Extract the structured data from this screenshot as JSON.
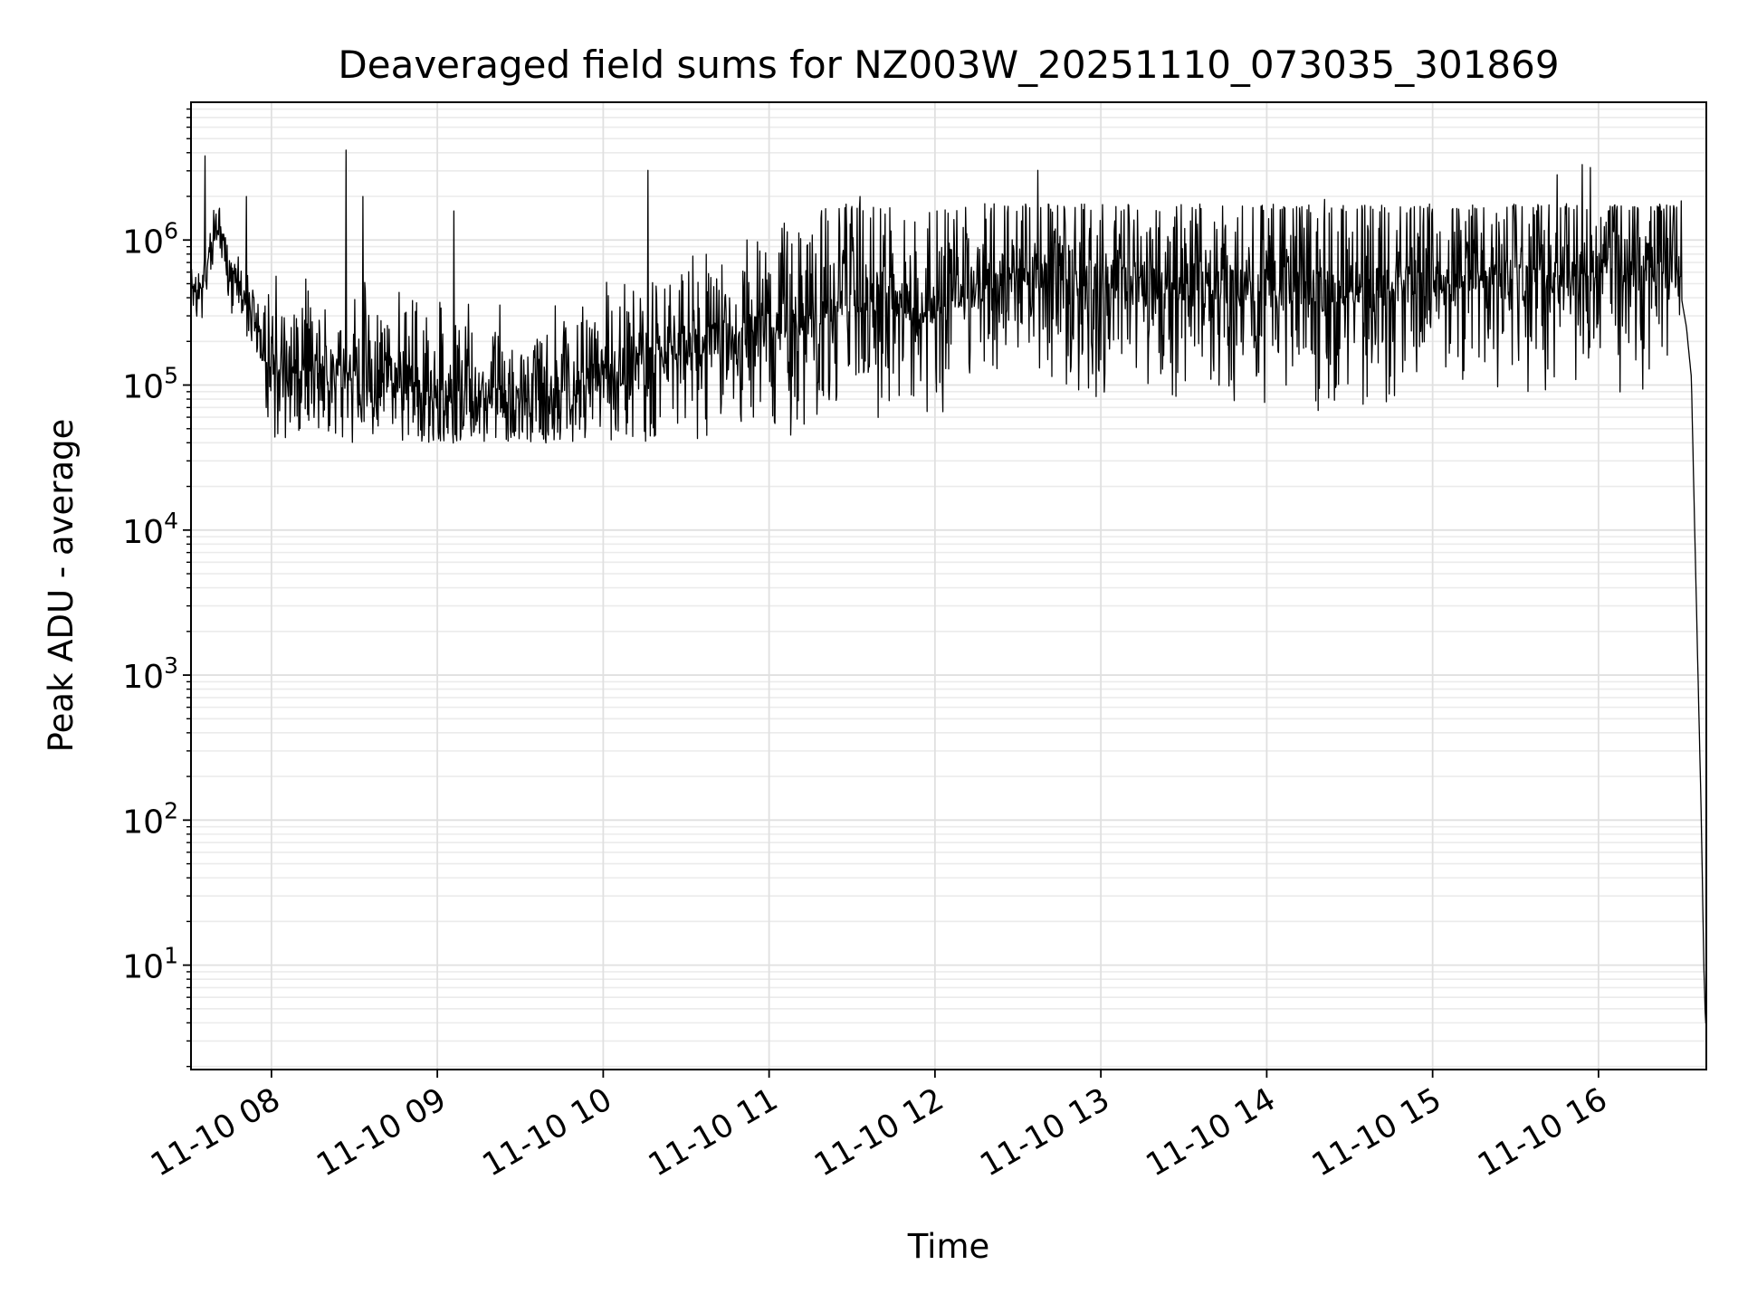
{
  "chart_data": {
    "type": "line",
    "title": "Deaveraged field sums for NZ003W_20251110_073035_301869",
    "xlabel": "Time",
    "ylabel": "Peak ADU - average",
    "x_tick_labels": [
      "11-10 08",
      "11-10 09",
      "11-10 10",
      "11-10 11",
      "11-10 12",
      "11-10 13",
      "11-10 14",
      "11-10 15",
      "11-10 16"
    ],
    "x_ticks_hours": [
      8,
      9,
      10,
      11,
      12,
      13,
      14,
      15,
      16
    ],
    "xlim_hours": [
      7.515,
      16.65
    ],
    "y_scale": "log",
    "y_tick_labels": [
      {
        "base": "10",
        "exp": "1"
      },
      {
        "base": "10",
        "exp": "2"
      },
      {
        "base": "10",
        "exp": "3"
      },
      {
        "base": "10",
        "exp": "4"
      },
      {
        "base": "10",
        "exp": "5"
      },
      {
        "base": "10",
        "exp": "6"
      }
    ],
    "y_ticks_log10": [
      1,
      2,
      3,
      4,
      5,
      6
    ],
    "ylim_log10": [
      0.28,
      6.95
    ],
    "grid": true,
    "series": [
      {
        "name": "Peak ADU - average",
        "color": "#000000",
        "baseline": [
          [
            7.515,
            5.6
          ],
          [
            7.6,
            5.75
          ],
          [
            7.68,
            6.1
          ],
          [
            7.75,
            5.75
          ],
          [
            7.85,
            5.55
          ],
          [
            7.95,
            5.25
          ],
          [
            8.1,
            5.1
          ],
          [
            8.5,
            5.05
          ],
          [
            9.0,
            5.0
          ],
          [
            9.5,
            4.9
          ],
          [
            10.0,
            5.05
          ],
          [
            10.5,
            5.25
          ],
          [
            11.0,
            5.4
          ],
          [
            11.5,
            5.6
          ],
          [
            12.0,
            5.55
          ],
          [
            12.5,
            5.75
          ],
          [
            13.0,
            5.7
          ],
          [
            13.5,
            5.7
          ],
          [
            14.0,
            5.7
          ],
          [
            14.5,
            5.65
          ],
          [
            15.0,
            5.75
          ],
          [
            15.5,
            5.8
          ],
          [
            16.0,
            5.75
          ],
          [
            16.35,
            5.8
          ],
          [
            16.45,
            5.9
          ],
          [
            16.5,
            5.6
          ],
          [
            16.53,
            5.4
          ],
          [
            16.56,
            5.05
          ],
          [
            16.58,
            4.0
          ],
          [
            16.6,
            3.0
          ],
          [
            16.62,
            2.0
          ],
          [
            16.635,
            1.0
          ],
          [
            16.645,
            0.6
          ],
          [
            16.65,
            0.6
          ]
        ],
        "spikes": [
          [
            7.6,
            6.58
          ],
          [
            7.85,
            6.3
          ],
          [
            8.45,
            6.62
          ],
          [
            8.55,
            6.3
          ],
          [
            9.1,
            6.2
          ],
          [
            10.27,
            6.48
          ],
          [
            11.55,
            6.3
          ],
          [
            12.3,
            6.25
          ],
          [
            12.62,
            6.48
          ],
          [
            14.35,
            6.28
          ],
          [
            15.75,
            6.45
          ],
          [
            15.9,
            6.52
          ],
          [
            15.95,
            6.5
          ],
          [
            16.5,
            6.27
          ]
        ]
      }
    ]
  }
}
